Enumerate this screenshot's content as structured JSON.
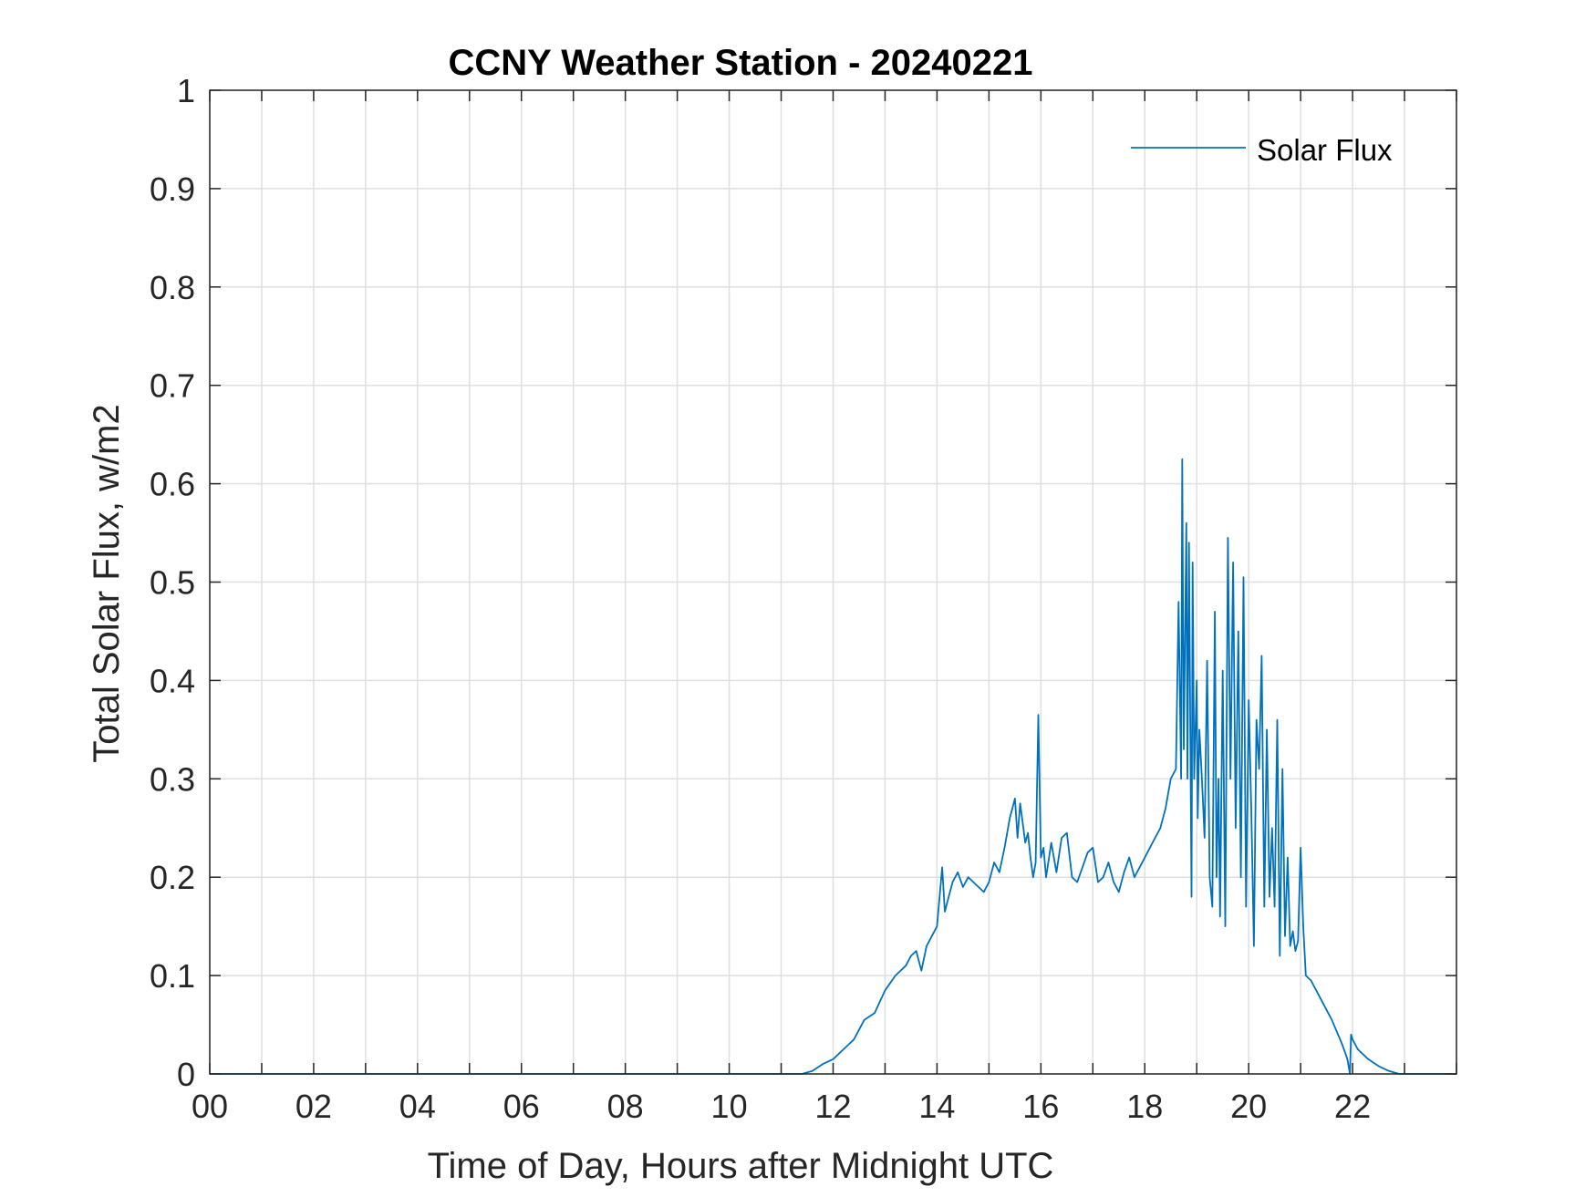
{
  "chart_data": {
    "type": "line",
    "title": "CCNY Weather Station - 20240221",
    "xlabel": "Time of Day, Hours after Midnight UTC",
    "ylabel": "Total Solar Flux, w/m2",
    "xlim": [
      0,
      24
    ],
    "ylim": [
      0,
      1
    ],
    "x_tick_values": [
      0,
      2,
      4,
      6,
      8,
      10,
      12,
      14,
      16,
      18,
      20,
      22
    ],
    "x_tick_labels": [
      "00",
      "02",
      "04",
      "06",
      "08",
      "10",
      "12",
      "14",
      "16",
      "18",
      "20",
      "22"
    ],
    "x_grid_values": [
      0,
      1,
      2,
      3,
      4,
      5,
      6,
      7,
      8,
      9,
      10,
      11,
      12,
      13,
      14,
      15,
      16,
      17,
      18,
      19,
      20,
      21,
      22,
      23,
      24
    ],
    "y_tick_values": [
      0,
      0.1,
      0.2,
      0.3,
      0.4,
      0.5,
      0.6,
      0.7,
      0.8,
      0.9,
      1
    ],
    "y_tick_labels": [
      "0",
      "0.1",
      "0.2",
      "0.3",
      "0.4",
      "0.5",
      "0.6",
      "0.7",
      "0.8",
      "0.9",
      "1"
    ],
    "grid": true,
    "legend_position": "top-right",
    "series": [
      {
        "name": "Solar Flux",
        "color": "#0072BD",
        "x": [
          0,
          11.4,
          11.6,
          11.8,
          12.0,
          12.2,
          12.4,
          12.6,
          12.8,
          13.0,
          13.2,
          13.4,
          13.5,
          13.6,
          13.7,
          13.8,
          13.9,
          14.0,
          14.1,
          14.15,
          14.2,
          14.3,
          14.4,
          14.5,
          14.6,
          14.7,
          14.8,
          14.9,
          15.0,
          15.1,
          15.2,
          15.3,
          15.4,
          15.5,
          15.55,
          15.6,
          15.7,
          15.75,
          15.8,
          15.85,
          15.9,
          15.95,
          16.0,
          16.05,
          16.1,
          16.2,
          16.3,
          16.4,
          16.5,
          16.6,
          16.7,
          16.8,
          16.9,
          17.0,
          17.1,
          17.2,
          17.3,
          17.4,
          17.5,
          17.6,
          17.7,
          17.8,
          17.9,
          18.0,
          18.1,
          18.2,
          18.3,
          18.4,
          18.5,
          18.6,
          18.65,
          18.7,
          18.72,
          18.75,
          18.8,
          18.82,
          18.85,
          18.9,
          18.92,
          18.95,
          19.0,
          19.02,
          19.05,
          19.1,
          19.15,
          19.2,
          19.25,
          19.3,
          19.35,
          19.38,
          19.42,
          19.45,
          19.5,
          19.55,
          19.6,
          19.65,
          19.7,
          19.75,
          19.8,
          19.85,
          19.9,
          19.93,
          19.95,
          20.0,
          20.05,
          20.1,
          20.15,
          20.2,
          20.25,
          20.3,
          20.35,
          20.4,
          20.45,
          20.5,
          20.55,
          20.6,
          20.65,
          20.7,
          20.75,
          20.8,
          20.85,
          20.9,
          20.95,
          21.0,
          21.05,
          21.08,
          21.1,
          21.2,
          21.4,
          21.6,
          21.8,
          21.9,
          21.95,
          21.97,
          22.0,
          22.1,
          22.3,
          22.5,
          22.7,
          22.9,
          23.0,
          24.0
        ],
        "y": [
          0,
          0,
          0.003,
          0.01,
          0.015,
          0.025,
          0.035,
          0.055,
          0.062,
          0.085,
          0.1,
          0.11,
          0.12,
          0.125,
          0.105,
          0.13,
          0.14,
          0.15,
          0.21,
          0.165,
          0.175,
          0.195,
          0.205,
          0.19,
          0.2,
          0.195,
          0.19,
          0.185,
          0.195,
          0.215,
          0.205,
          0.23,
          0.26,
          0.28,
          0.24,
          0.275,
          0.235,
          0.245,
          0.22,
          0.2,
          0.215,
          0.365,
          0.22,
          0.23,
          0.2,
          0.235,
          0.205,
          0.24,
          0.245,
          0.2,
          0.195,
          0.21,
          0.225,
          0.23,
          0.195,
          0.2,
          0.215,
          0.195,
          0.185,
          0.205,
          0.22,
          0.2,
          0.21,
          0.22,
          0.23,
          0.24,
          0.25,
          0.27,
          0.3,
          0.31,
          0.48,
          0.3,
          0.625,
          0.33,
          0.56,
          0.3,
          0.54,
          0.18,
          0.52,
          0.3,
          0.4,
          0.26,
          0.35,
          0.3,
          0.24,
          0.42,
          0.2,
          0.17,
          0.47,
          0.2,
          0.3,
          0.16,
          0.41,
          0.15,
          0.545,
          0.3,
          0.52,
          0.25,
          0.45,
          0.2,
          0.505,
          0.3,
          0.17,
          0.38,
          0.27,
          0.13,
          0.36,
          0.31,
          0.425,
          0.17,
          0.35,
          0.18,
          0.25,
          0.17,
          0.36,
          0.12,
          0.31,
          0.14,
          0.22,
          0.13,
          0.145,
          0.125,
          0.135,
          0.23,
          0.15,
          0.12,
          0.1,
          0.095,
          0.075,
          0.055,
          0.03,
          0.015,
          0.0,
          0.04,
          0.035,
          0.025,
          0.015,
          0.008,
          0.003,
          0.0,
          0,
          0
        ]
      }
    ]
  }
}
